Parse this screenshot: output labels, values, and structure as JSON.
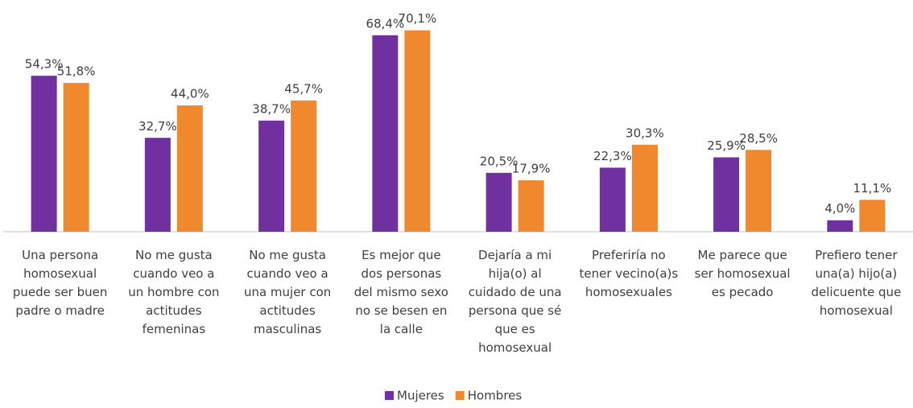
{
  "chart_data": {
    "type": "bar",
    "categories": [
      "Una persona\nhomosexual\npuede ser buen\npadre o madre",
      "No me gusta\ncuando veo a\nun hombre con\nactitudes\nfemeninas",
      "No me gusta\ncuando veo a\nuna mujer con\nactitudes\nmasculinas",
      "Es mejor que\ndos personas\ndel mismo sexo\nno se besen en\nla calle",
      "Dejaría a mi\nhija(o) al\ncuidado de una\npersona que sé\nque es\nhomosexual",
      "Preferiría no\ntener vecino(a)s\nhomosexuales",
      "Me parece que\nser homosexual\nes pecado",
      "Prefiero tener\nuna(a) hijo(a)\ndelicuente que\nhomosexual"
    ],
    "series": [
      {
        "name": "Mujeres",
        "color": "#7030a0",
        "values": [
          54.3,
          32.7,
          38.7,
          68.4,
          20.5,
          22.3,
          25.9,
          4.0
        ],
        "value_labels": [
          "54,3%",
          "32,7%",
          "38,7%",
          "68,4%",
          "20,5%",
          "22,3%",
          "25,9%",
          "4,0%"
        ]
      },
      {
        "name": "Hombres",
        "color": "#f0882d",
        "values": [
          51.8,
          44.0,
          45.7,
          70.1,
          17.9,
          30.3,
          28.5,
          11.1
        ],
        "value_labels": [
          "51,8%",
          "44,0%",
          "45,7%",
          "70,1%",
          "17,9%",
          "30,3%",
          "28,5%",
          "11,1%"
        ]
      }
    ]
  }
}
